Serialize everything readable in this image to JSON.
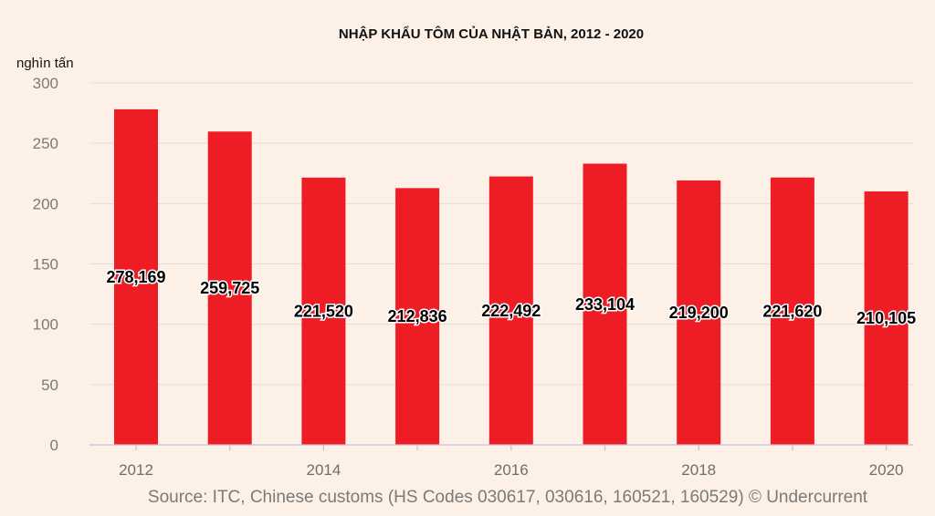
{
  "chart_data": {
    "type": "bar",
    "title": "NHẬP KHẨU TÔM CỦA NHẬT BẢN, 2012 - 2020",
    "ylabel": "nghìn tấn",
    "xlabel": "",
    "categories": [
      "2012",
      "2013",
      "2014",
      "2015",
      "2016",
      "2017",
      "2018",
      "2019",
      "2020"
    ],
    "values": [
      278.169,
      259.725,
      221.52,
      212.836,
      222.492,
      233.104,
      219.2,
      221.62,
      210.105
    ],
    "data_labels": [
      "278,169",
      "259,725",
      "221,520",
      "212,836",
      "222,492",
      "233,104",
      "219,200",
      "221,620",
      "210,105"
    ],
    "x_tick_labels": [
      "2012",
      "",
      "2014",
      "",
      "2016",
      "",
      "2018",
      "",
      "2020"
    ],
    "y_ticks": [
      0,
      50,
      100,
      150,
      200,
      250,
      300
    ],
    "ylim": [
      0,
      300
    ],
    "bar_color": "#ee1c25",
    "grid": true,
    "legend": "none",
    "source": "Source: ITC, Chinese customs (HS Codes 030617, 030616, 160521, 160529)  © Undercurrent"
  }
}
